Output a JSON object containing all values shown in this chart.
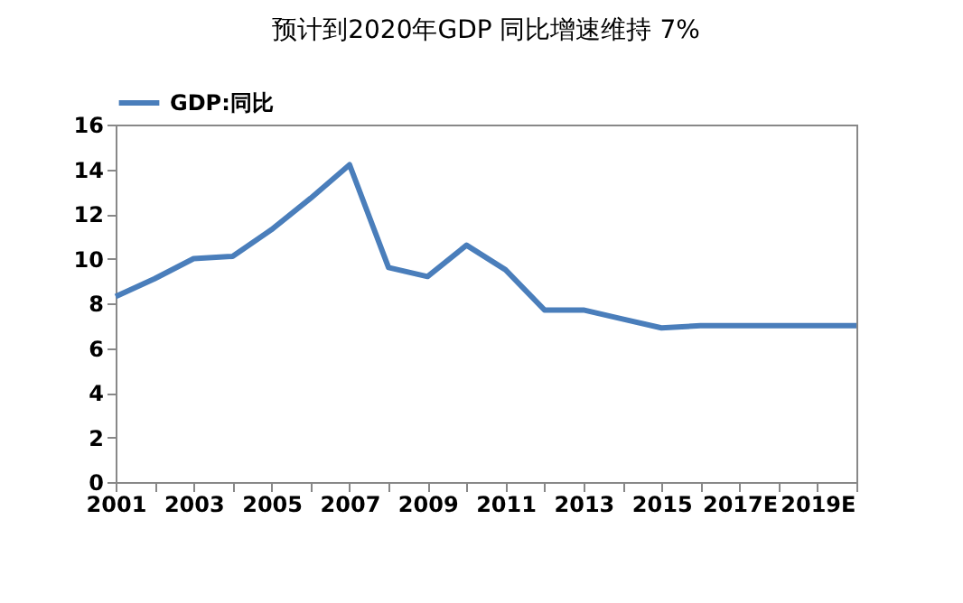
{
  "chart_data": {
    "type": "line",
    "title": "预计到2020年GDP 同比增速维持 7%",
    "categories": [
      "2001",
      null,
      "2003",
      null,
      "2005",
      null,
      "2007",
      null,
      "2009",
      null,
      "2011",
      null,
      "2013",
      null,
      "2015",
      null,
      "2017E",
      null,
      "2019E",
      null
    ],
    "series": [
      {
        "name": "GDP:同比",
        "color": "#4a7ebb",
        "values": [
          8.3,
          9.1,
          10.0,
          10.1,
          11.3,
          12.7,
          14.2,
          9.6,
          9.2,
          10.6,
          9.5,
          7.7,
          7.7,
          7.3,
          6.9,
          7.0,
          7.0,
          7.0,
          7.0,
          7.0
        ]
      }
    ],
    "ylim": [
      0,
      16
    ],
    "yticks": [
      0,
      2,
      4,
      6,
      8,
      10,
      12,
      14,
      16
    ],
    "grid": false,
    "legend": "top left",
    "marker": "none",
    "line_style": "solid"
  }
}
